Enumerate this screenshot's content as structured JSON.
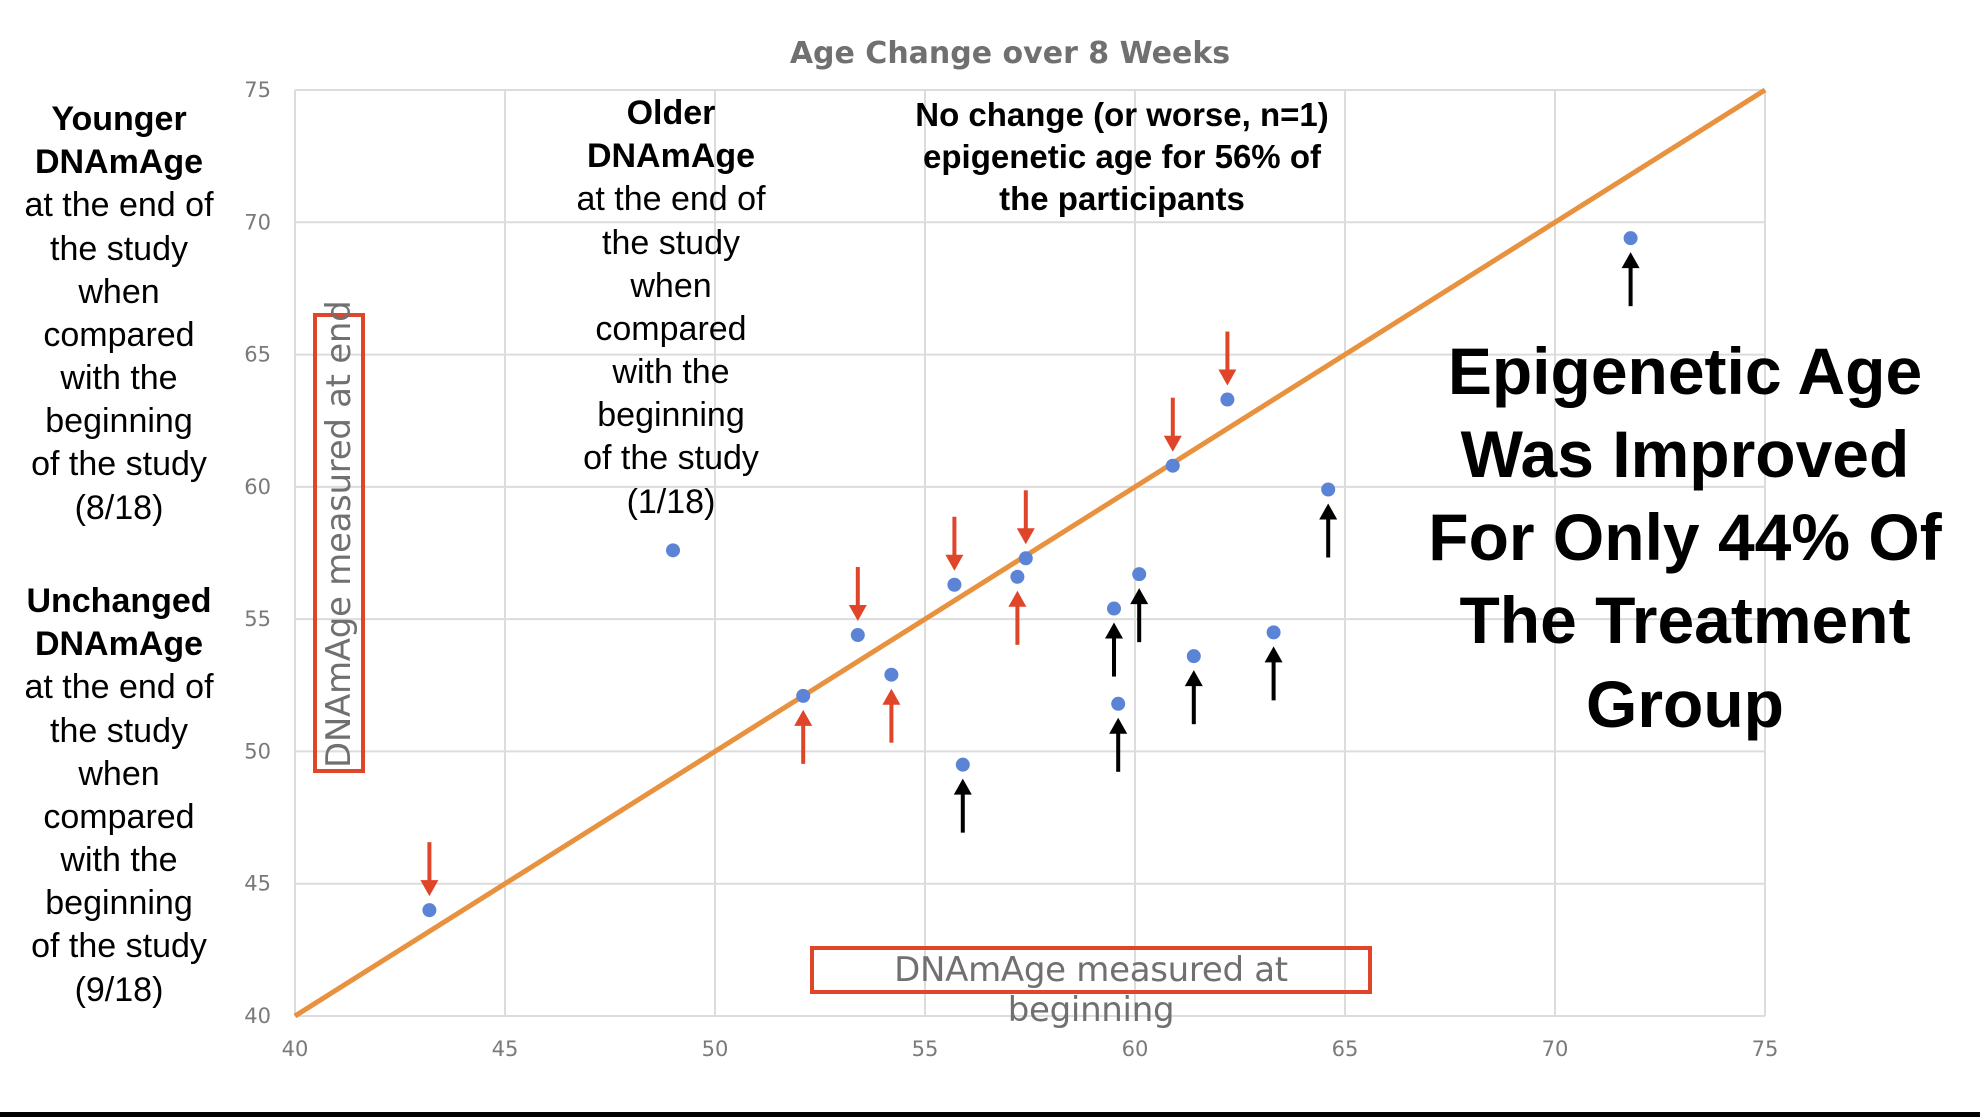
{
  "chart_data": {
    "type": "scatter",
    "title": "Age Change over 8 Weeks",
    "xlabel": "DNAmAge measured at beginning",
    "ylabel": "DNAmAge measured at end",
    "xlim": [
      40,
      75
    ],
    "ylim": [
      40,
      75
    ],
    "x_ticks": [
      40,
      45,
      50,
      55,
      60,
      65,
      70,
      75
    ],
    "y_ticks": [
      40,
      45,
      50,
      55,
      60,
      65,
      70,
      75
    ],
    "grid": true,
    "reference_line": {
      "from": [
        40,
        40
      ],
      "to": [
        75,
        75
      ],
      "color": "#e8913f"
    },
    "point_color": "#5b83d6",
    "points": [
      {
        "x": 43.2,
        "y": 44.0,
        "arrow": "down-red"
      },
      {
        "x": 49.0,
        "y": 57.6,
        "arrow": "none"
      },
      {
        "x": 52.1,
        "y": 52.1,
        "arrow": "up-red"
      },
      {
        "x": 53.4,
        "y": 54.4,
        "arrow": "down-red"
      },
      {
        "x": 54.2,
        "y": 52.9,
        "arrow": "up-red"
      },
      {
        "x": 55.7,
        "y": 56.3,
        "arrow": "down-red"
      },
      {
        "x": 55.9,
        "y": 49.5,
        "arrow": "up-black"
      },
      {
        "x": 57.2,
        "y": 56.6,
        "arrow": "up-red"
      },
      {
        "x": 57.4,
        "y": 57.3,
        "arrow": "down-red"
      },
      {
        "x": 59.5,
        "y": 55.4,
        "arrow": "up-black"
      },
      {
        "x": 59.6,
        "y": 51.8,
        "arrow": "up-black"
      },
      {
        "x": 60.1,
        "y": 56.7,
        "arrow": "up-black"
      },
      {
        "x": 60.9,
        "y": 60.8,
        "arrow": "down-red"
      },
      {
        "x": 61.4,
        "y": 53.6,
        "arrow": "up-black"
      },
      {
        "x": 62.2,
        "y": 63.3,
        "arrow": "down-red"
      },
      {
        "x": 63.3,
        "y": 54.5,
        "arrow": "up-black"
      },
      {
        "x": 64.6,
        "y": 59.9,
        "arrow": "up-black"
      },
      {
        "x": 71.8,
        "y": 69.4,
        "arrow": "up-black"
      }
    ],
    "arrow_colors": {
      "red": "#e0452a",
      "black": "#000000"
    }
  },
  "annotations": {
    "younger": {
      "bold_lines": [
        "Younger",
        "DNAmAge"
      ],
      "lines": [
        "at the end of",
        "the study",
        "when",
        "compared",
        "with the",
        "beginning",
        "of the study",
        "(8/18)"
      ]
    },
    "unchanged": {
      "bold_lines": [
        "Unchanged",
        "DNAmAge"
      ],
      "lines": [
        "at the end of",
        "the study",
        "when",
        "compared",
        "with the",
        "beginning",
        "of the study",
        "(9/18)"
      ]
    },
    "older": {
      "bold_lines": [
        "Older",
        "DNAmAge"
      ],
      "lines": [
        "at the end of",
        "the study",
        "when",
        "compared",
        "with the",
        "beginning",
        "of the study",
        "(1/18)"
      ]
    },
    "no_change": [
      "No change (or worse, n=1)",
      "epigenetic age for 56% of",
      "the participants"
    ],
    "headline": [
      "Epigenetic Age",
      "Was Improved",
      "For Only 44% Of",
      "The Treatment",
      "Group"
    ]
  }
}
